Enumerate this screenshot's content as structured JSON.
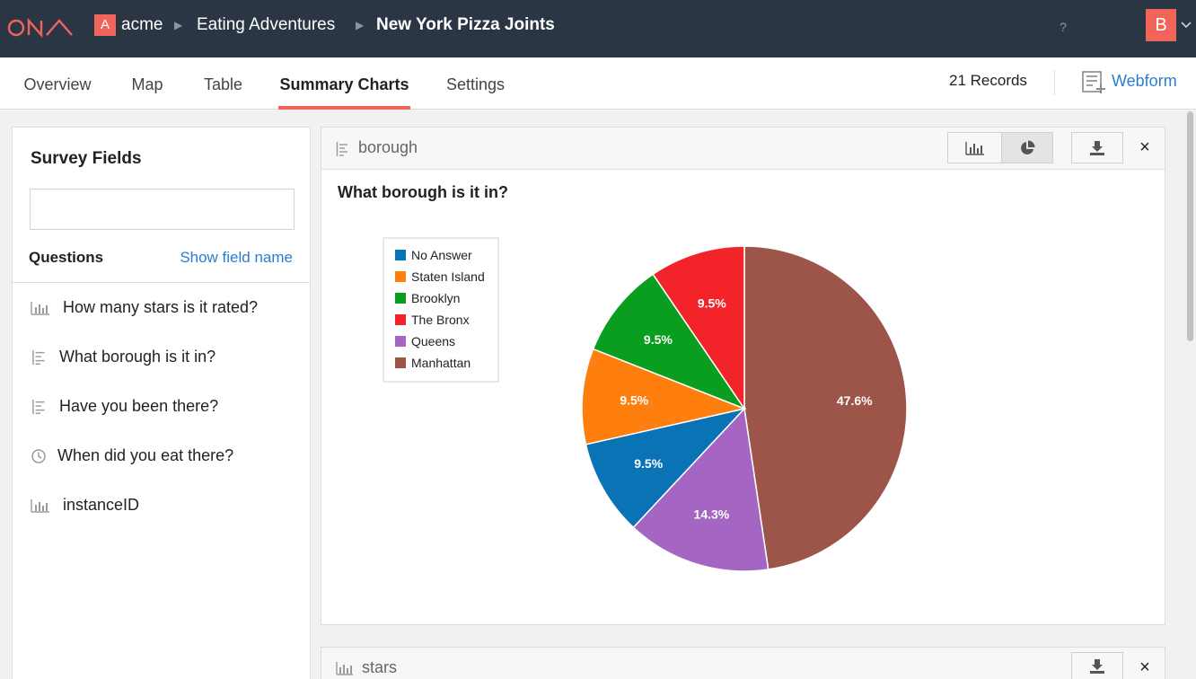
{
  "header": {
    "org_initial": "A",
    "breadcrumb": [
      "acme",
      "Eating Adventures",
      "New York Pizza Joints"
    ],
    "help_label": "?",
    "user_initial": "B"
  },
  "tabs": [
    "Overview",
    "Map",
    "Table",
    "Summary Charts",
    "Settings"
  ],
  "active_tab": "Summary Charts",
  "records_label": "21 Records",
  "webform_label": "Webform",
  "sidebar": {
    "title": "Survey Fields",
    "search_value": "",
    "questions_label": "Questions",
    "show_field_name": "Show field name",
    "fields": [
      {
        "label": "How many stars is it rated?",
        "icon": "bar-chart-icon"
      },
      {
        "label": "What borough is it in?",
        "icon": "text-lines-icon"
      },
      {
        "label": "Have you been there?",
        "icon": "text-lines-icon"
      },
      {
        "label": "When did you eat there?",
        "icon": "clock-icon"
      },
      {
        "label": "instanceID",
        "icon": "bar-chart-icon"
      }
    ]
  },
  "panel": {
    "field_name": "borough",
    "question": "What borough is it in?",
    "close_label": "×"
  },
  "panel2": {
    "field_name": "stars",
    "close_label": "×"
  },
  "chart_data": {
    "type": "pie",
    "title": "What borough is it in?",
    "legend_position": "left",
    "slices": [
      {
        "label": "Manhattan",
        "value": 47.6,
        "display": "47.6%",
        "color": "#9d5449"
      },
      {
        "label": "Queens",
        "value": 14.3,
        "display": "14.3%",
        "color": "#a466c2"
      },
      {
        "label": "No Answer",
        "value": 9.5,
        "display": "9.5%",
        "color": "#0a73b6"
      },
      {
        "label": "Staten Island",
        "value": 9.5,
        "display": "9.5%",
        "color": "#ff7f0e"
      },
      {
        "label": "Brooklyn",
        "value": 9.5,
        "display": "9.5%",
        "color": "#0a9e21"
      },
      {
        "label": "The Bronx",
        "value": 9.5,
        "display": "9.5%",
        "color": "#f2242a"
      }
    ],
    "legend": [
      {
        "label": "No Answer",
        "color": "#0a73b6"
      },
      {
        "label": "Staten Island",
        "color": "#ff7f0e"
      },
      {
        "label": "Brooklyn",
        "color": "#0a9e21"
      },
      {
        "label": "The Bronx",
        "color": "#f2242a"
      },
      {
        "label": "Queens",
        "color": "#a466c2"
      },
      {
        "label": "Manhattan",
        "color": "#9d5449"
      }
    ]
  },
  "colors": {
    "topbar": "#2b3644",
    "accent": "#f0645a",
    "link": "#2a7ed2"
  }
}
